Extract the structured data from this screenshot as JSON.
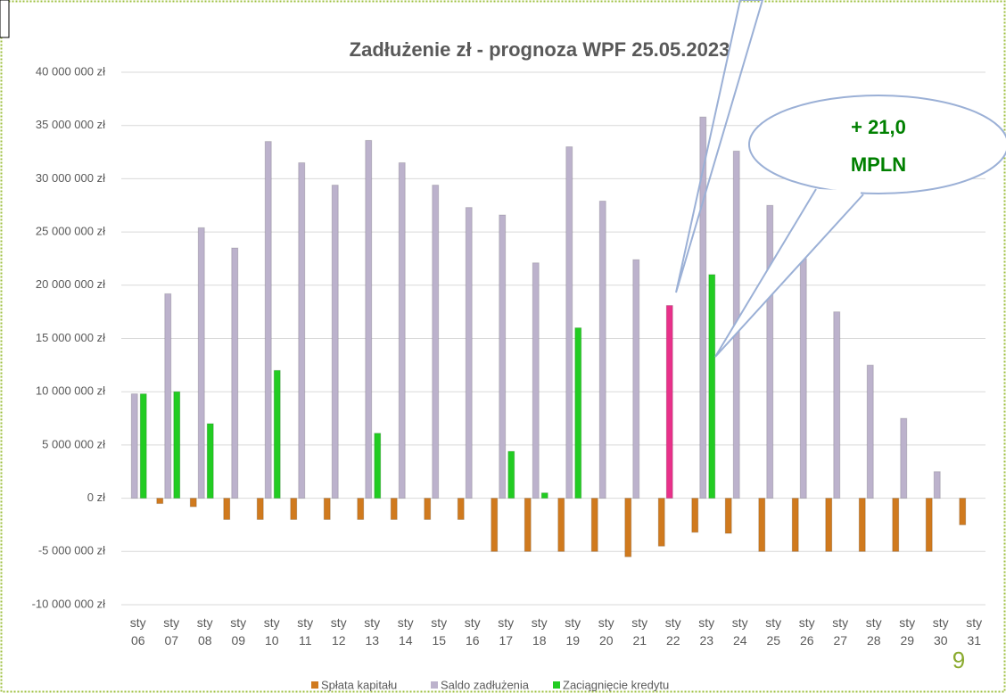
{
  "chart_data": {
    "type": "bar",
    "title": "Zadłużenie zł - prognoza WPF 25.05.2023",
    "annotation": [
      "+ 21,0",
      "MPLN"
    ],
    "page_number": "9",
    "categories": [
      "sty 06",
      "sty 07",
      "sty 08",
      "sty 09",
      "sty 10",
      "sty 11",
      "sty 12",
      "sty 13",
      "sty 14",
      "sty 15",
      "sty 16",
      "sty 17",
      "sty 18",
      "sty 19",
      "sty 20",
      "sty 21",
      "sty 22",
      "sty 23",
      "sty 24",
      "sty 25",
      "sty 26",
      "sty 27",
      "sty 28",
      "sty 29",
      "sty 30",
      "sty 31"
    ],
    "series": [
      {
        "name": "Spłata kapitału",
        "color": "#d07a1e",
        "values": [
          null,
          -500000,
          -800000,
          -2000000,
          -2000000,
          -2000000,
          -2000000,
          -2000000,
          -2000000,
          -2000000,
          -2000000,
          -5000000,
          -5000000,
          -5000000,
          -5000000,
          -5500000,
          -4500000,
          -3200000,
          -3300000,
          -5000000,
          -5000000,
          -5000000,
          -5000000,
          -5000000,
          -5000000,
          -2500000
        ]
      },
      {
        "name": "Saldo zadłużenia",
        "color": "#bcb2cc",
        "colors": [
          "#bcb2cc",
          "#bcb2cc",
          "#bcb2cc",
          "#bcb2cc",
          "#bcb2cc",
          "#bcb2cc",
          "#bcb2cc",
          "#bcb2cc",
          "#bcb2cc",
          "#bcb2cc",
          "#bcb2cc",
          "#bcb2cc",
          "#bcb2cc",
          "#bcb2cc",
          "#bcb2cc",
          "#bcb2cc",
          "#e8318a",
          "#bcb2cc",
          "#bcb2cc",
          "#bcb2cc",
          "#bcb2cc",
          "#bcb2cc",
          "#bcb2cc",
          "#bcb2cc",
          "#bcb2cc",
          "#bcb2cc"
        ],
        "values": [
          9800000,
          19200000,
          25400000,
          23500000,
          33500000,
          31500000,
          29400000,
          33600000,
          31500000,
          29400000,
          27300000,
          26600000,
          22100000,
          33000000,
          27900000,
          22400000,
          18100000,
          35800000,
          32600000,
          27500000,
          22500000,
          17500000,
          12500000,
          7500000,
          2500000,
          null
        ]
      },
      {
        "name": "Zaciągnięcie kredytu",
        "color": "#22cc22",
        "values": [
          9800000,
          10000000,
          7000000,
          null,
          12000000,
          null,
          null,
          6100000,
          null,
          null,
          null,
          4400000,
          500000,
          16000000,
          null,
          null,
          null,
          21000000,
          null,
          null,
          null,
          null,
          null,
          null,
          null,
          null
        ]
      }
    ],
    "ylim": [
      -10000000,
      40000000
    ],
    "yticks": [
      {
        "value": -10000000,
        "label": "-10 000 000 zł"
      },
      {
        "value": -5000000,
        "label": "-5 000 000 zł"
      },
      {
        "value": 0,
        "label": "0 zł"
      },
      {
        "value": 5000000,
        "label": "5 000 000 zł"
      },
      {
        "value": 10000000,
        "label": "10 000 000 zł"
      },
      {
        "value": 15000000,
        "label": "15 000 000 zł"
      },
      {
        "value": 20000000,
        "label": "20 000 000 zł"
      },
      {
        "value": 25000000,
        "label": "25 000 000 zł"
      },
      {
        "value": 30000000,
        "label": "30 000 000 zł"
      },
      {
        "value": 35000000,
        "label": "35 000 000 zł"
      },
      {
        "value": 40000000,
        "label": "40 000 000 zł"
      }
    ],
    "grid": true,
    "legend": "bottom"
  }
}
